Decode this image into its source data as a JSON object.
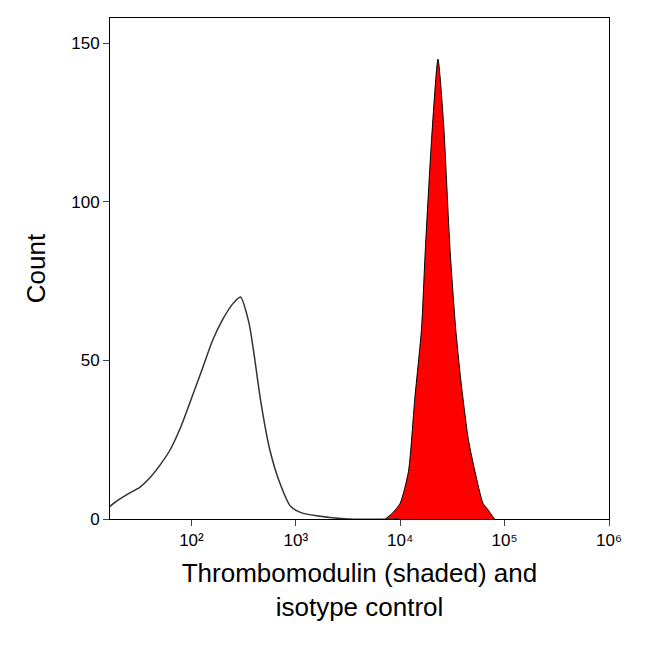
{
  "chart_data": {
    "type": "line",
    "x_label": "Thrombomodulin (shaded) and\nisotype control",
    "y_label": "Count",
    "log": "x",
    "grid": false,
    "xlim": [
      16.6,
      1000000
    ],
    "ylim": [
      0,
      158
    ],
    "xticks": [
      {
        "value": 100,
        "label": "10²"
      },
      {
        "value": 1000,
        "label": "10³"
      },
      {
        "value": 10000,
        "label": "10⁴"
      },
      {
        "value": 100000,
        "label": "10⁵"
      },
      {
        "value": 1000000,
        "label": "10⁶"
      }
    ],
    "yticks": [
      0,
      50,
      100,
      150
    ],
    "series": [
      {
        "type": "line",
        "color": "#333333",
        "x": [
          16.6,
          20,
          25,
          32,
          40,
          50,
          63,
          79,
          100,
          126,
          158,
          200,
          251,
          295,
          355,
          398,
          457,
          562,
          692,
          891,
          1122,
          1585,
          3162,
          10000
        ],
        "values": [
          4,
          6,
          8,
          10,
          13,
          17,
          22,
          29,
          38,
          47,
          56,
          63,
          68,
          70,
          62,
          52,
          38,
          22,
          12,
          4,
          2,
          1,
          0,
          0
        ]
      },
      {
        "type": "area",
        "color": "#ff0000",
        "x": [
          7200,
          8500,
          10000,
          12000,
          13800,
          16000,
          17400,
          20000,
          23000,
          26000,
          30000,
          34000,
          38000,
          45000,
          52000,
          62000,
          69000,
          80000
        ],
        "values": [
          0,
          2,
          5,
          15,
          38,
          60,
          85,
          120,
          145,
          125,
          85,
          60,
          44,
          25,
          15,
          5,
          3,
          0
        ]
      }
    ]
  }
}
